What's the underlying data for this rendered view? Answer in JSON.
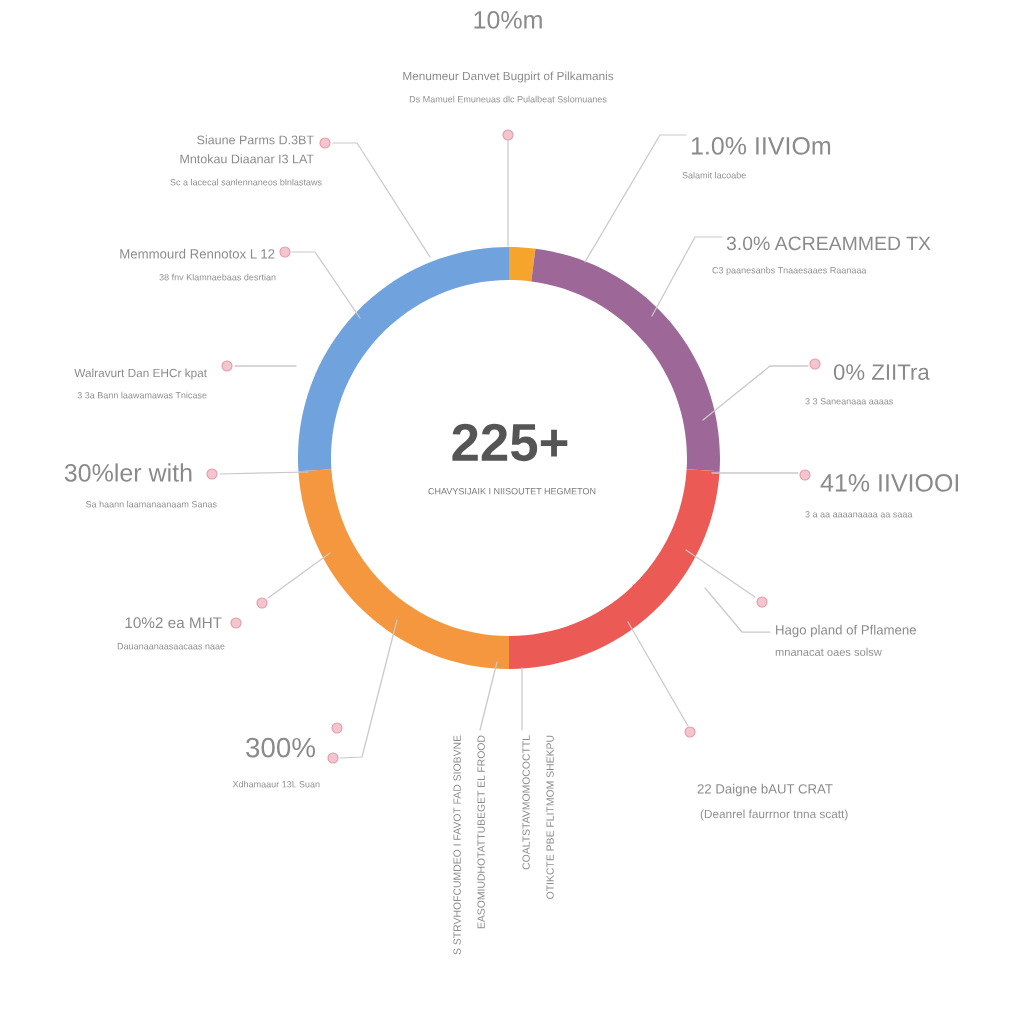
{
  "chart_data": {
    "type": "donut",
    "categories": [
      null,
      null,
      null,
      null,
      null
    ],
    "values": [
      2,
      24,
      24,
      24,
      26
    ],
    "colors": [
      "#f6a52c",
      "#9d6898",
      "#ec5a55",
      "#f4973f",
      "#70a2dd"
    ],
    "annotations": [
      "10%m",
      "Menumeur Danvet Bugpirt of Pilkamanis",
      "Ds Mamuel Emuneuas dlc Pulalbeat Sslomuanes",
      "Siaune Parms D.3BT",
      "Mntokau Diaanar I3 LAT",
      "Sc a lacecal sanlennaneos blnlastaws",
      "Memmourd Rennotox L 12",
      "38 fnv Klamnaebaas desrtian",
      "Walravurt Dan EHCr kpat",
      "3 3a Bann laawamawas Tnicase",
      "30%ler with",
      "Sa haann laamanaanaam Sanas",
      "10%2 ea MHT",
      "Dauanaanaasaacaas naae",
      "300%",
      "Xdhamaaur 13L Suan",
      "S STRVHOFCUMDEO I FAVOT FAD SIOBVNE",
      "EASOMIUDHOTATTUBEGET EL FROOD",
      "COALTSTAVMOMOCOCTTL",
      "OTIKCTE PBE FLITMOM SHEKPU",
      "1.0% IIVIOm",
      "Salamit lacoabe",
      "3.0% ACREAMMED TX",
      "C3 paanesanbs Tnaaesaaes Raanaaa",
      "0% ZIITra",
      "3 3 Saneanaaa aaaas",
      "41% IIVIOOI",
      "3 a aa aaaanaaaa aa saaa",
      "Hago pland of Pflamene",
      "mnanacat oaes solsw",
      "22 Daigne bAUT CRAT",
      "(Deanrel faurrnor tnna scatt)",
      "225+",
      "CHAVYSIJAIK I NIISOUTET HEGMETON"
    ]
  }
}
